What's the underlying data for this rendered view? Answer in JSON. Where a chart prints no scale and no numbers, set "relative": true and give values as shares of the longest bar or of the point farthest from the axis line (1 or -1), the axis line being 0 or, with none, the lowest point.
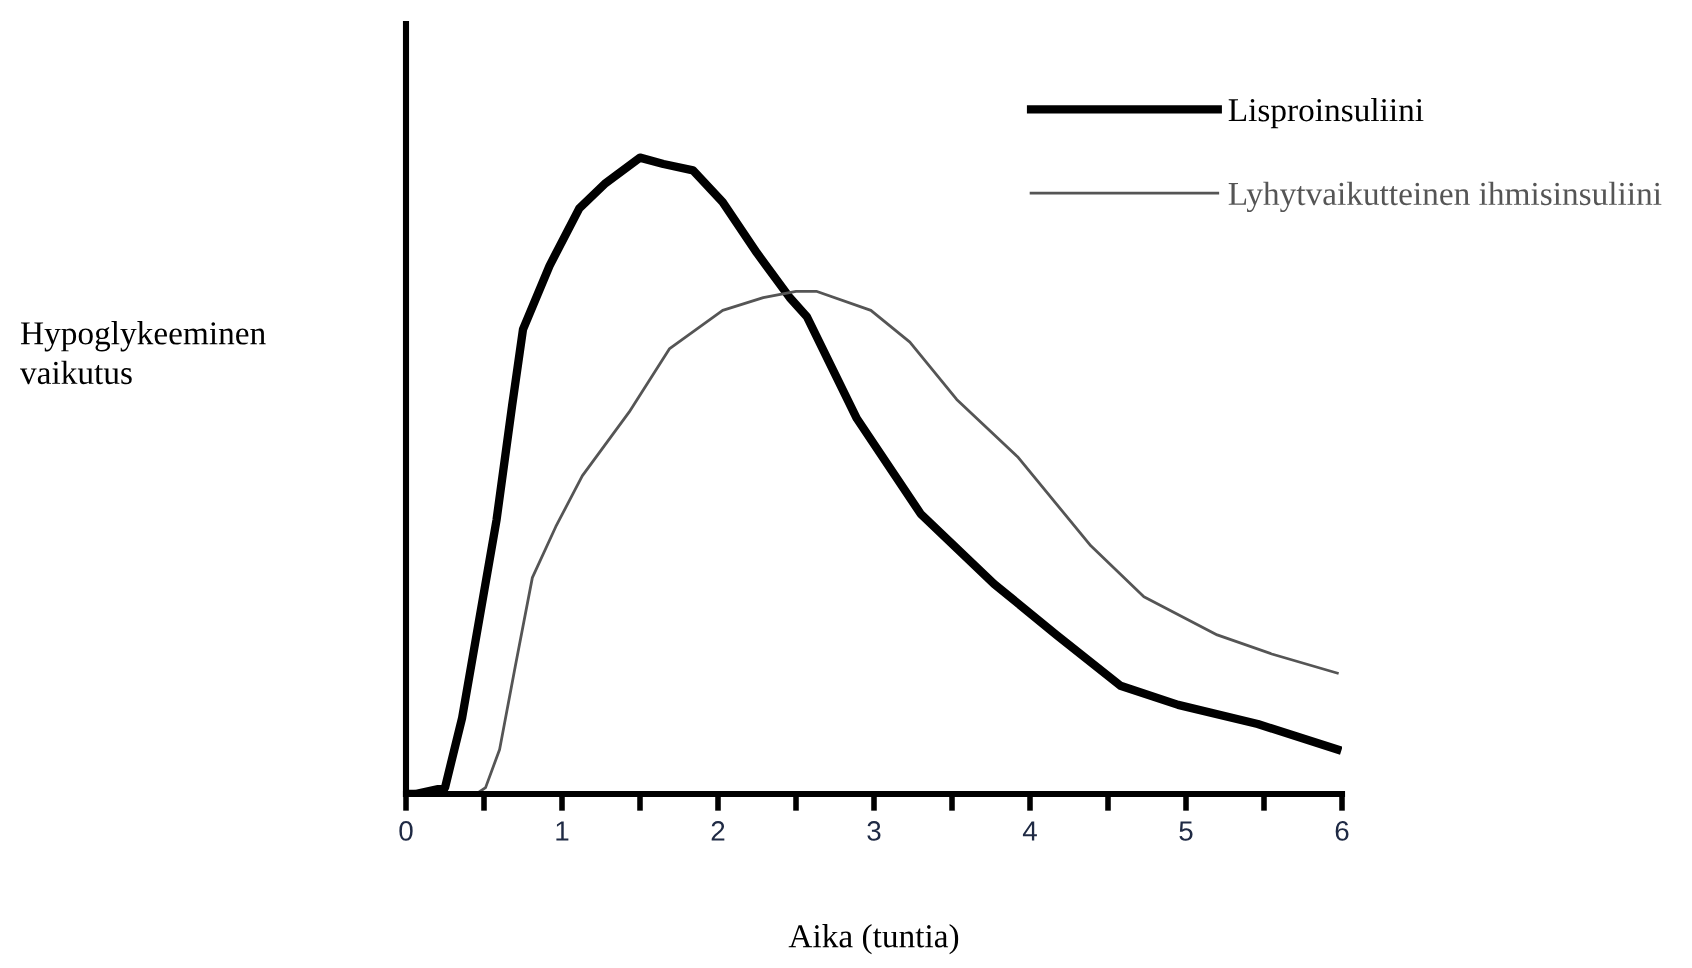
{
  "chart_data": {
    "type": "line",
    "relative": true,
    "xlabel": "Aika (tuntia)",
    "ylabel": "Hypoglykeeminen\nvaikutus",
    "xlim": [
      0,
      6
    ],
    "xticks": [
      0,
      {
        "value": 0.5,
        "label": null
      },
      1,
      {
        "value": 1.5,
        "label": null
      },
      2,
      {
        "value": 2.5,
        "label": null
      },
      3,
      {
        "value": 3.5,
        "label": null
      },
      4,
      {
        "value": 4.5,
        "label": null
      },
      5,
      {
        "value": 5.5,
        "label": null
      },
      6
    ],
    "legend": "top right",
    "grid": false,
    "marker": "none",
    "line_style": "solid",
    "series": [
      {
        "name": "Lisproinsuliini",
        "color": "#000000",
        "x": [
          0,
          0.06,
          0.25,
          0.36,
          0.58,
          0.68,
          0.75,
          0.92,
          1.11,
          1.28,
          1.5,
          1.65,
          1.84,
          2.03,
          2.25,
          2.46,
          2.57,
          2.89,
          3.3,
          3.77,
          4.17,
          4.58,
          4.95,
          5.46,
          5.97
        ],
        "values": [
          0,
          0,
          0.01,
          0.12,
          0.43,
          0.61,
          0.73,
          0.83,
          0.92,
          0.96,
          1.0,
          0.99,
          0.98,
          0.93,
          0.85,
          0.78,
          0.75,
          0.59,
          0.44,
          0.33,
          0.25,
          0.17,
          0.14,
          0.11,
          0.07
        ]
      },
      {
        "name": "Lyhytvaikutteinen ihmisinsuliini",
        "color": "#555555",
        "x": [
          0.45,
          0.51,
          0.6,
          0.7,
          0.81,
          0.96,
          1.13,
          1.43,
          1.69,
          2.03,
          2.29,
          2.5,
          2.63,
          2.98,
          3.23,
          3.53,
          3.92,
          4.39,
          4.73,
          5.2,
          5.55,
          5.97
        ],
        "values": [
          0,
          0.01,
          0.07,
          0.2,
          0.34,
          0.42,
          0.5,
          0.6,
          0.7,
          0.76,
          0.78,
          0.79,
          0.79,
          0.76,
          0.71,
          0.62,
          0.53,
          0.39,
          0.31,
          0.25,
          0.22,
          0.19
        ]
      }
    ]
  }
}
